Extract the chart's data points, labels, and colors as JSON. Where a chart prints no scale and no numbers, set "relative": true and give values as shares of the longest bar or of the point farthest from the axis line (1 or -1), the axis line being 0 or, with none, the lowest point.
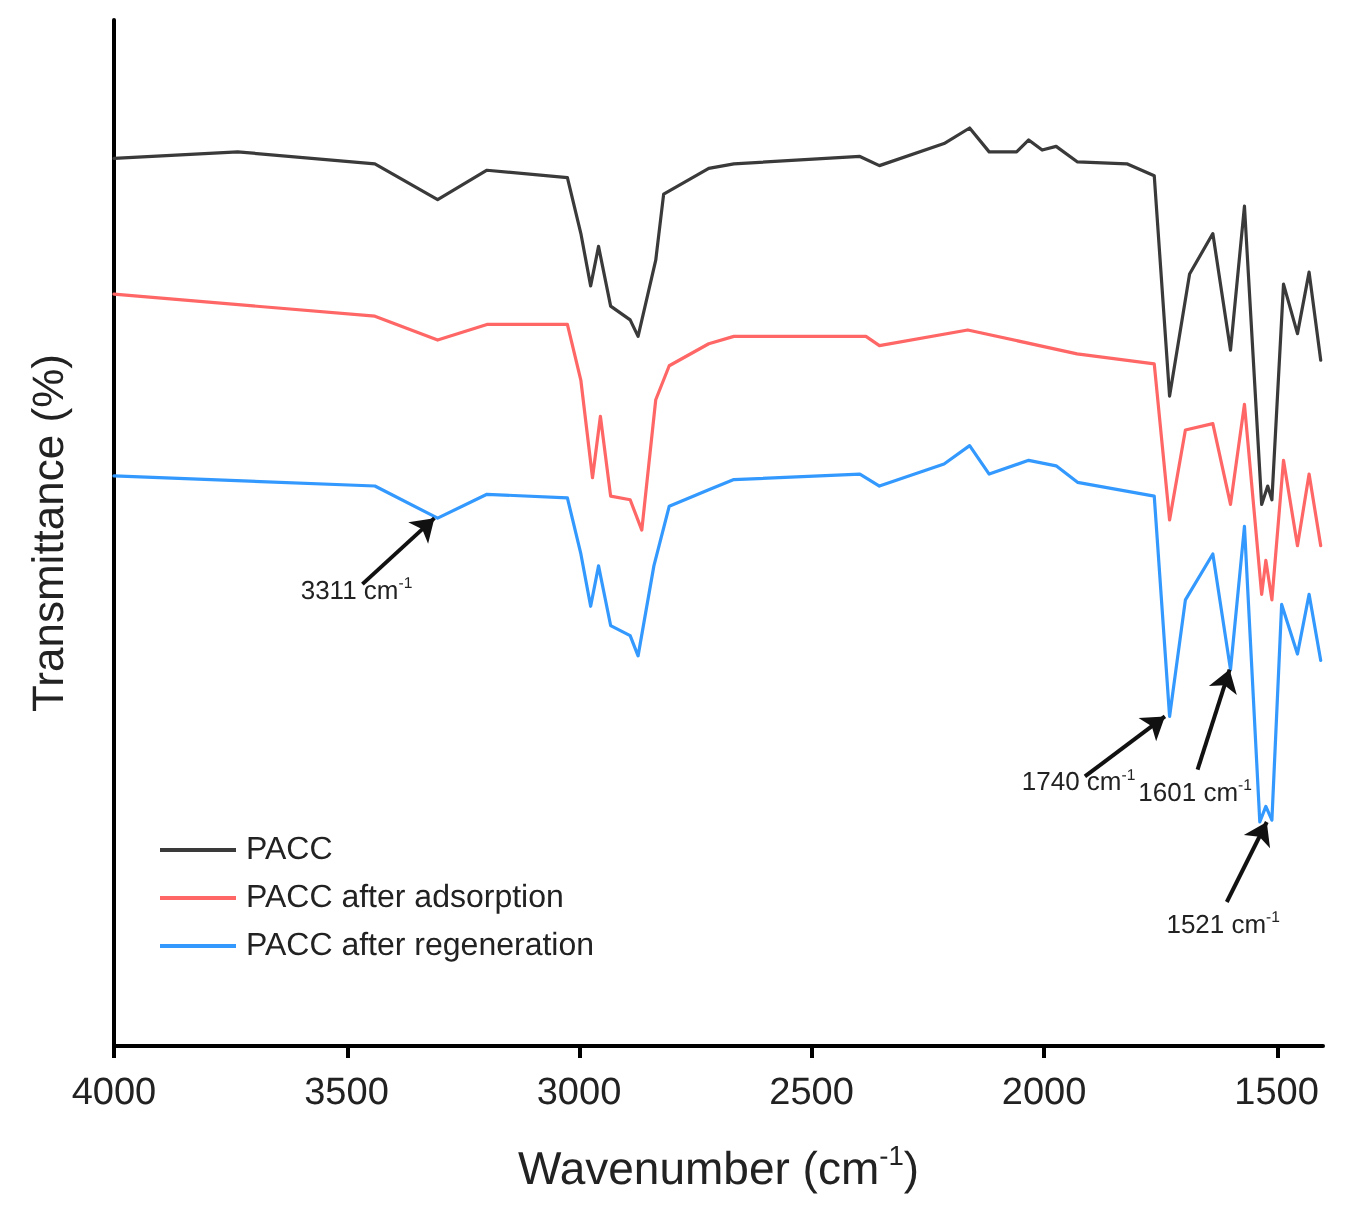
{
  "chart_data": {
    "type": "line",
    "relative": true,
    "xlabel": "Wavenumber (cm$^{-1}$)",
    "ylabel": "Transmittance (%)",
    "xlim": [
      4000,
      1400
    ],
    "xticks": [
      4000,
      3500,
      3000,
      2500,
      2000,
      1500
    ],
    "legend": "bottom left",
    "grid": false,
    "marker": "none",
    "line_style": "solid",
    "series": [
      {
        "name": "PACC",
        "color": "#3a3a3a",
        "x": [
          4000,
          3734,
          3439,
          3304,
          3198,
          3025,
          2996,
          2975,
          2958,
          2932,
          2890,
          2873,
          2835,
          2818,
          2721,
          2667,
          2396,
          2354,
          2215,
          2160,
          2118,
          2059,
          2033,
          2004,
          1974,
          1928,
          1822,
          1763,
          1730,
          1687,
          1637,
          1599,
          1569,
          1532,
          1519,
          1510,
          1485,
          1455,
          1430,
          1405
        ],
        "values": [
          0.967,
          0.974,
          0.961,
          0.922,
          0.954,
          0.946,
          0.885,
          0.828,
          0.871,
          0.806,
          0.791,
          0.773,
          0.856,
          0.928,
          0.956,
          0.961,
          0.969,
          0.959,
          0.983,
          1,
          0.974,
          0.974,
          0.987,
          0.976,
          0.98,
          0.963,
          0.961,
          0.948,
          0.708,
          0.841,
          0.885,
          0.758,
          0.915,
          0.59,
          0.61,
          0.595,
          0.83,
          0.776,
          0.843,
          0.747
        ]
      },
      {
        "name": "PACC after adsorption",
        "color": "#ff6666",
        "x": [
          4000,
          3439,
          3304,
          3198,
          3025,
          2996,
          2971,
          2954,
          2932,
          2890,
          2865,
          2835,
          2806,
          2721,
          2667,
          2383,
          2354,
          2164,
          1929,
          1763,
          1730,
          1696,
          1637,
          1599,
          1569,
          1532,
          1523,
          1510,
          1485,
          1455,
          1430,
          1405
        ],
        "values": [
          0.819,
          0.795,
          0.769,
          0.786,
          0.786,
          0.725,
          0.619,
          0.686,
          0.599,
          0.595,
          0.562,
          0.704,
          0.741,
          0.765,
          0.773,
          0.773,
          0.763,
          0.78,
          0.754,
          0.743,
          0.573,
          0.671,
          0.678,
          0.59,
          0.699,
          0.492,
          0.529,
          0.486,
          0.638,
          0.545,
          0.623,
          0.545
        ]
      },
      {
        "name": "PACC after regeneration",
        "color": "#3399ff",
        "x": [
          4000,
          3439,
          3304,
          3198,
          3025,
          2996,
          2975,
          2958,
          2932,
          2890,
          2873,
          2839,
          2806,
          2721,
          2667,
          2396,
          2354,
          2215,
          2160,
          2118,
          2033,
          1974,
          1928,
          1763,
          1730,
          1696,
          1637,
          1599,
          1569,
          1536,
          1523,
          1510,
          1489,
          1455,
          1430,
          1405
        ],
        "values": [
          0.621,
          0.61,
          0.575,
          0.601,
          0.597,
          0.536,
          0.479,
          0.523,
          0.458,
          0.447,
          0.425,
          0.523,
          0.588,
          0.606,
          0.617,
          0.623,
          0.61,
          0.634,
          0.654,
          0.623,
          0.638,
          0.632,
          0.614,
          0.599,
          0.359,
          0.486,
          0.536,
          0.41,
          0.566,
          0.244,
          0.261,
          0.246,
          0.481,
          0.427,
          0.492,
          0.42
        ]
      }
    ],
    "annotations": [
      {
        "text": "3311 cm$^{-1}$",
        "x": 3311,
        "y": 0.575
      },
      {
        "text": "1740 cm$^{-1}$",
        "x": 1740,
        "y": 0.359
      },
      {
        "text": "1601 cm$^{-1}$",
        "x": 1601,
        "y": 0.41
      },
      {
        "text": "1521 cm$^{-1}$",
        "x": 1521,
        "y": 0.244
      }
    ]
  }
}
